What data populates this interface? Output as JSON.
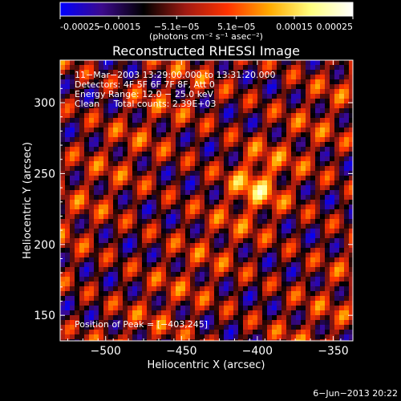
{
  "chart_data": {
    "type": "heatmap",
    "title": "Reconstructed RHESSI Image",
    "xlabel": "Heliocentric X (arcsec)",
    "ylabel": "Heliocentric Y (arcsec)",
    "xlim": [
      -530,
      -337
    ],
    "ylim": [
      132,
      330
    ],
    "xticks": [
      -500,
      -450,
      -400,
      -350
    ],
    "xtick_labels": [
      "−500",
      "−450",
      "−400",
      "−350"
    ],
    "yticks": [
      150,
      200,
      250,
      300
    ],
    "ytick_labels": [
      "150",
      "200",
      "250",
      "300"
    ],
    "grid": false,
    "colorbar": {
      "range": [
        -0.00025,
        0.00025
      ],
      "ticks": [
        -0.00025,
        -0.00015,
        -5.1e-05,
        5.1e-05,
        0.00015,
        0.00025
      ],
      "tick_labels": [
        "-0.00025",
        "−0.00015",
        "−5.1e−05",
        "5.1e−05",
        "0.00015",
        "0.00025"
      ],
      "unit_label": "(photons cm⁻² s⁻¹ asec⁻²)",
      "colormap": [
        "#0000ff",
        "#3c0a8c",
        "#000000",
        "#a01a12",
        "#ff3300",
        "#ffaa00",
        "#ffff80",
        "#ffffff"
      ]
    },
    "annotations": [
      "11−Mar−2003 13:29:00.000 to 13:31:20.000",
      "Detectors: 4F 5F 6F 7F 8F, Att 0",
      "Energy Range: 12.0 − 25.0 keV",
      "Clean     Total counts: 2.39E+03"
    ],
    "peak_label": "Position of Peak = [−403,245]",
    "peak": {
      "x": -403,
      "y": 245
    }
  },
  "footer": {
    "date": "6−Jun−2013 20:22"
  }
}
